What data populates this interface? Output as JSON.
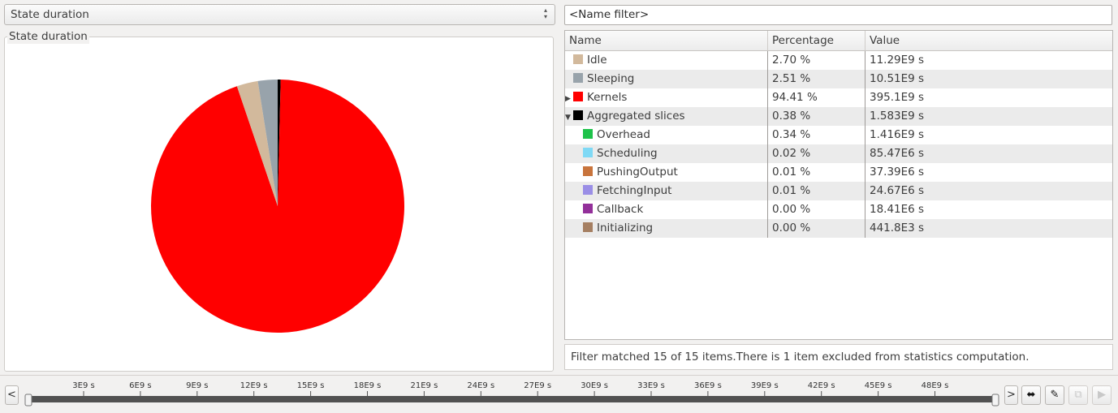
{
  "combo": {
    "value": "State duration"
  },
  "chart_panel": {
    "title": "State duration"
  },
  "filter": {
    "placeholder": "<Name filter>"
  },
  "table": {
    "headers": {
      "name": "Name",
      "percentage": "Percentage",
      "value": "Value"
    },
    "rows": [
      {
        "name": "Idle",
        "percentage": "2.70 %",
        "value": "11.29E9 s",
        "color": "#d2b99c",
        "level": 0,
        "expander": ""
      },
      {
        "name": "Sleeping",
        "percentage": "2.51 %",
        "value": "10.51E9 s",
        "color": "#98a3ab",
        "level": 0,
        "expander": ""
      },
      {
        "name": "Kernels",
        "percentage": "94.41 %",
        "value": "395.1E9 s",
        "color": "#ff0000",
        "level": 0,
        "expander": "collapsed"
      },
      {
        "name": "Aggregated slices",
        "percentage": "0.38 %",
        "value": "1.583E9 s",
        "color": "#000000",
        "level": 0,
        "expander": "expanded"
      },
      {
        "name": "Overhead",
        "percentage": "0.34 %",
        "value": "1.416E9 s",
        "color": "#1ec24a",
        "level": 1,
        "expander": ""
      },
      {
        "name": "Scheduling",
        "percentage": "0.02 %",
        "value": "85.47E6 s",
        "color": "#7fd9f5",
        "level": 1,
        "expander": ""
      },
      {
        "name": "PushingOutput",
        "percentage": "0.01 %",
        "value": "37.39E6 s",
        "color": "#c8743c",
        "level": 1,
        "expander": ""
      },
      {
        "name": "FetchingInput",
        "percentage": "0.01 %",
        "value": "24.67E6 s",
        "color": "#9a8ee6",
        "level": 1,
        "expander": ""
      },
      {
        "name": "Callback",
        "percentage": "0.00 %",
        "value": "18.41E6 s",
        "color": "#93309a",
        "level": 1,
        "expander": ""
      },
      {
        "name": "Initializing",
        "percentage": "0.00 %",
        "value": "441.8E3 s",
        "color": "#a57f62",
        "level": 1,
        "expander": ""
      }
    ]
  },
  "status": {
    "text": "Filter matched 15 of 15 items.There is 1 item excluded from statistics computation."
  },
  "timeline": {
    "left_button": "<",
    "right_button": ">",
    "ticks": [
      "3E9 s",
      "6E9 s",
      "9E9 s",
      "12E9 s",
      "15E9 s",
      "18E9 s",
      "21E9 s",
      "24E9 s",
      "27E9 s",
      "30E9 s",
      "33E9 s",
      "36E9 s",
      "39E9 s",
      "42E9 s",
      "45E9 s",
      "48E9 s"
    ],
    "selection_start_fraction": 0,
    "selection_end_fraction": 1
  },
  "pie_slices": [
    {
      "name": "Aggregated slices",
      "value": 0.38,
      "color": "#000000"
    },
    {
      "name": "Kernels",
      "value": 94.41,
      "color": "#ff0000"
    },
    {
      "name": "Idle",
      "value": 2.7,
      "color": "#d2b99c"
    },
    {
      "name": "Sleeping",
      "value": 2.51,
      "color": "#98a3ab"
    }
  ],
  "icons": {
    "fit": "arrows-horizontal-icon",
    "edit": "pencil-icon",
    "copy": "copy-icon",
    "play": "play-icon"
  }
}
